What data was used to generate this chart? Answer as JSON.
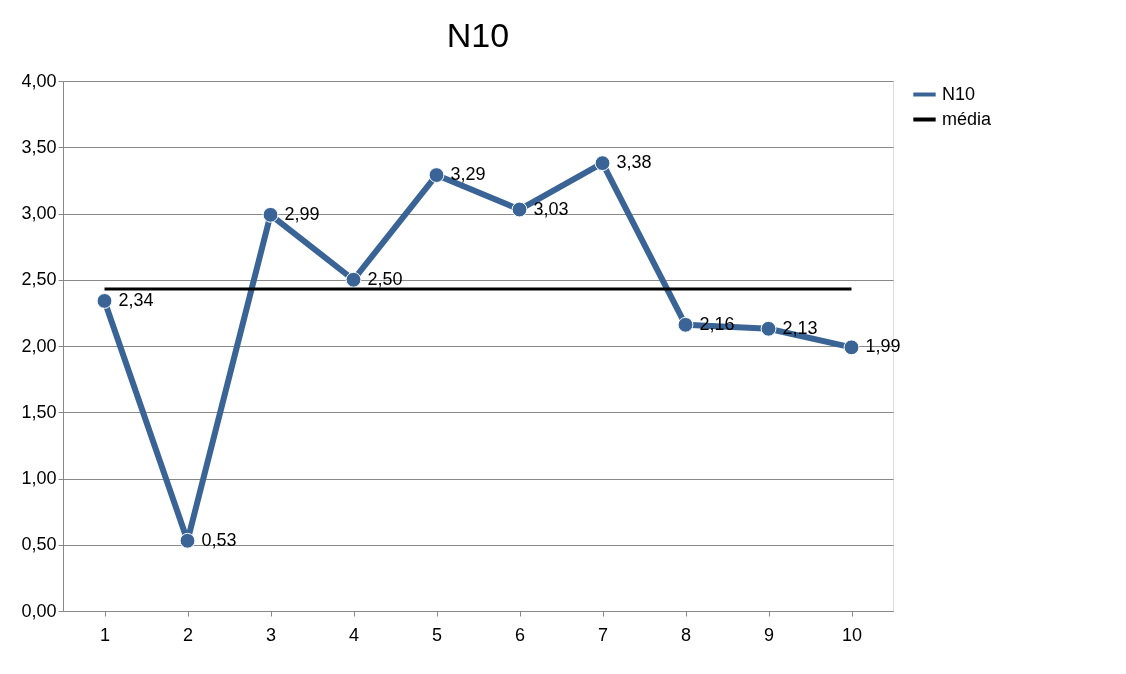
{
  "chart_data": {
    "type": "line",
    "title": "N10",
    "categories": [
      "1",
      "2",
      "3",
      "4",
      "5",
      "6",
      "7",
      "8",
      "9",
      "10"
    ],
    "series": [
      {
        "name": "N10",
        "color": "#3a6496",
        "marker": "circle",
        "values": [
          2.34,
          0.53,
          2.99,
          2.5,
          3.29,
          3.03,
          3.38,
          2.16,
          2.13,
          1.99
        ],
        "value_labels": [
          "2,34",
          "0,53",
          "2,99",
          "2,50",
          "3,29",
          "3,03",
          "3,38",
          "2,16",
          "2,13",
          "1,99"
        ]
      },
      {
        "name": "média",
        "color": "#000000",
        "marker": "none",
        "values": [
          2.43,
          2.43,
          2.43,
          2.43,
          2.43,
          2.43,
          2.43,
          2.43,
          2.43,
          2.43
        ]
      }
    ],
    "ylim": [
      0,
      4
    ],
    "yticks": [
      {
        "value": 0,
        "label": "0,00"
      },
      {
        "value": 0.5,
        "label": "0,50"
      },
      {
        "value": 1,
        "label": "1,00"
      },
      {
        "value": 1.5,
        "label": "1,50"
      },
      {
        "value": 2,
        "label": "2,00"
      },
      {
        "value": 2.5,
        "label": "2,50"
      },
      {
        "value": 3,
        "label": "3,00"
      },
      {
        "value": 3.5,
        "label": "3,50"
      },
      {
        "value": 4,
        "label": "4,00"
      }
    ],
    "grid": "y",
    "legend": "right"
  }
}
